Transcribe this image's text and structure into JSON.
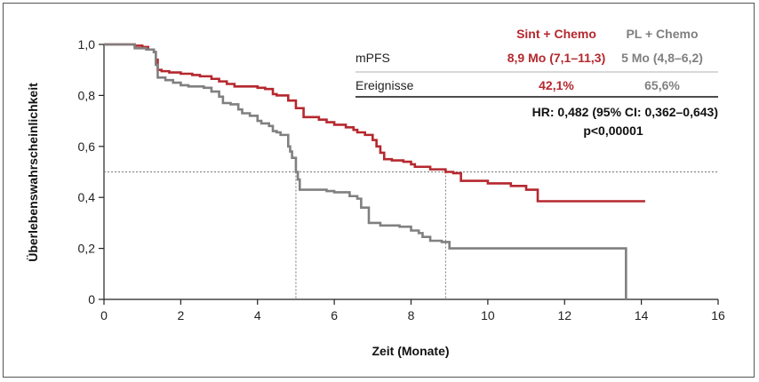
{
  "chart_data": {
    "type": "line",
    "xlabel": "Zeit (Monate)",
    "ylabel": "Überlebenswahrscheinlichkeit",
    "xlim": [
      0,
      16
    ],
    "ylim": [
      0,
      1.0
    ],
    "x_ticks": [
      0,
      2,
      4,
      6,
      8,
      10,
      12,
      14,
      16
    ],
    "x_tick_labels": [
      "0",
      "2",
      "4",
      "6",
      "8",
      "10",
      "12",
      "14",
      "16"
    ],
    "y_ticks": [
      0,
      0.2,
      0.4,
      0.6,
      0.8,
      1.0
    ],
    "y_tick_labels": [
      "0",
      "0,2",
      "0,4",
      "0,6",
      "0,8",
      "1,0"
    ],
    "grid": false,
    "median_line_y": 0.5,
    "series": [
      {
        "name": "Sint + Chemo",
        "color": "#b5282e",
        "median_x": 8.9,
        "points": [
          [
            0,
            1.0
          ],
          [
            0.6,
            1.0
          ],
          [
            0.8,
            0.995
          ],
          [
            1.0,
            0.99
          ],
          [
            1.15,
            0.98
          ],
          [
            1.3,
            0.97
          ],
          [
            1.35,
            0.94
          ],
          [
            1.4,
            0.9
          ],
          [
            1.5,
            0.895
          ],
          [
            1.7,
            0.89
          ],
          [
            2.0,
            0.885
          ],
          [
            2.3,
            0.88
          ],
          [
            2.5,
            0.875
          ],
          [
            2.8,
            0.865
          ],
          [
            3.0,
            0.855
          ],
          [
            3.2,
            0.845
          ],
          [
            3.4,
            0.835
          ],
          [
            4.0,
            0.83
          ],
          [
            4.2,
            0.825
          ],
          [
            4.4,
            0.805
          ],
          [
            4.5,
            0.8
          ],
          [
            4.8,
            0.78
          ],
          [
            5.0,
            0.75
          ],
          [
            5.2,
            0.715
          ],
          [
            5.6,
            0.705
          ],
          [
            5.8,
            0.695
          ],
          [
            6.0,
            0.685
          ],
          [
            6.3,
            0.675
          ],
          [
            6.5,
            0.665
          ],
          [
            6.6,
            0.655
          ],
          [
            6.8,
            0.645
          ],
          [
            7.0,
            0.625
          ],
          [
            7.1,
            0.6
          ],
          [
            7.2,
            0.575
          ],
          [
            7.3,
            0.55
          ],
          [
            7.5,
            0.545
          ],
          [
            7.8,
            0.54
          ],
          [
            8.0,
            0.53
          ],
          [
            8.1,
            0.52
          ],
          [
            8.5,
            0.51
          ],
          [
            8.9,
            0.5
          ],
          [
            9.1,
            0.495
          ],
          [
            9.3,
            0.465
          ],
          [
            10.0,
            0.455
          ],
          [
            10.6,
            0.445
          ],
          [
            11.0,
            0.43
          ],
          [
            11.3,
            0.385
          ],
          [
            14.1,
            0.385
          ]
        ]
      },
      {
        "name": "PL + Chemo",
        "color": "#808080",
        "median_x": 5.0,
        "points": [
          [
            0,
            1.0
          ],
          [
            0.7,
            1.0
          ],
          [
            0.8,
            0.985
          ],
          [
            1.1,
            0.98
          ],
          [
            1.3,
            0.97
          ],
          [
            1.35,
            0.92
          ],
          [
            1.4,
            0.87
          ],
          [
            1.6,
            0.86
          ],
          [
            1.8,
            0.85
          ],
          [
            2.0,
            0.84
          ],
          [
            2.2,
            0.835
          ],
          [
            2.6,
            0.83
          ],
          [
            2.8,
            0.815
          ],
          [
            3.0,
            0.795
          ],
          [
            3.1,
            0.77
          ],
          [
            3.3,
            0.765
          ],
          [
            3.5,
            0.745
          ],
          [
            3.6,
            0.73
          ],
          [
            3.8,
            0.72
          ],
          [
            4.0,
            0.7
          ],
          [
            4.1,
            0.69
          ],
          [
            4.3,
            0.68
          ],
          [
            4.4,
            0.66
          ],
          [
            4.5,
            0.655
          ],
          [
            4.6,
            0.645
          ],
          [
            4.8,
            0.6
          ],
          [
            4.85,
            0.58
          ],
          [
            4.9,
            0.555
          ],
          [
            5.0,
            0.5
          ],
          [
            5.05,
            0.47
          ],
          [
            5.1,
            0.43
          ],
          [
            5.8,
            0.425
          ],
          [
            6.0,
            0.42
          ],
          [
            6.4,
            0.405
          ],
          [
            6.6,
            0.395
          ],
          [
            6.7,
            0.36
          ],
          [
            6.9,
            0.3
          ],
          [
            7.2,
            0.29
          ],
          [
            7.7,
            0.285
          ],
          [
            8.0,
            0.27
          ],
          [
            8.2,
            0.26
          ],
          [
            8.3,
            0.245
          ],
          [
            8.5,
            0.23
          ],
          [
            8.8,
            0.225
          ],
          [
            9.0,
            0.2
          ],
          [
            10.0,
            0.2
          ],
          [
            13.6,
            0.2
          ],
          [
            13.6,
            0.0
          ]
        ]
      }
    ]
  },
  "info_table": {
    "col_sint": "Sint + Chemo",
    "col_pl": "PL + Chemo",
    "row_mpfs_label": "mPFS",
    "row_mpfs_sint": "8,9 Mo (7,1–11,3)",
    "row_mpfs_pl": "5 Mo (4,8–6,2)",
    "row_events_label": "Ereignisse",
    "row_events_sint": "42,1%",
    "row_events_pl": "65,6%",
    "hr_text": "HR: 0,482 (95% CI: 0,362–0,643)",
    "p_text": "p<0,00001"
  },
  "colors": {
    "sint": "#b5282e",
    "pl": "#808080",
    "axis": "#222222",
    "guide": "#777777"
  }
}
